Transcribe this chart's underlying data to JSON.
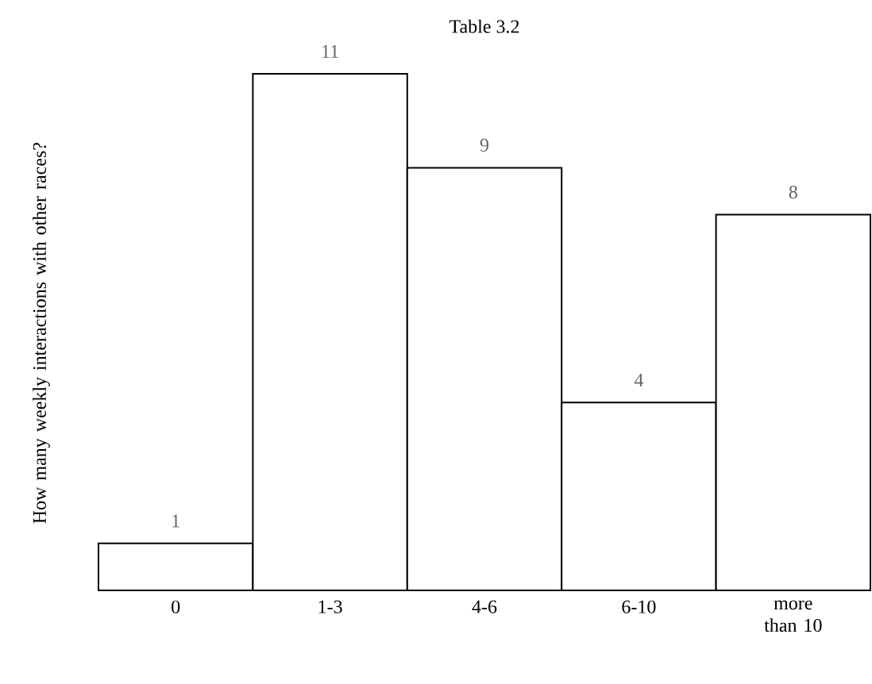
{
  "chart_data": {
    "type": "bar",
    "title": "Table 3.2",
    "ylabel": "How many weekly interactions with other races?",
    "categories": [
      "0",
      "1-3",
      "4-6",
      "6-10",
      "more than 10"
    ],
    "values": [
      1,
      11,
      9,
      4,
      8
    ],
    "data_labels": true
  }
}
